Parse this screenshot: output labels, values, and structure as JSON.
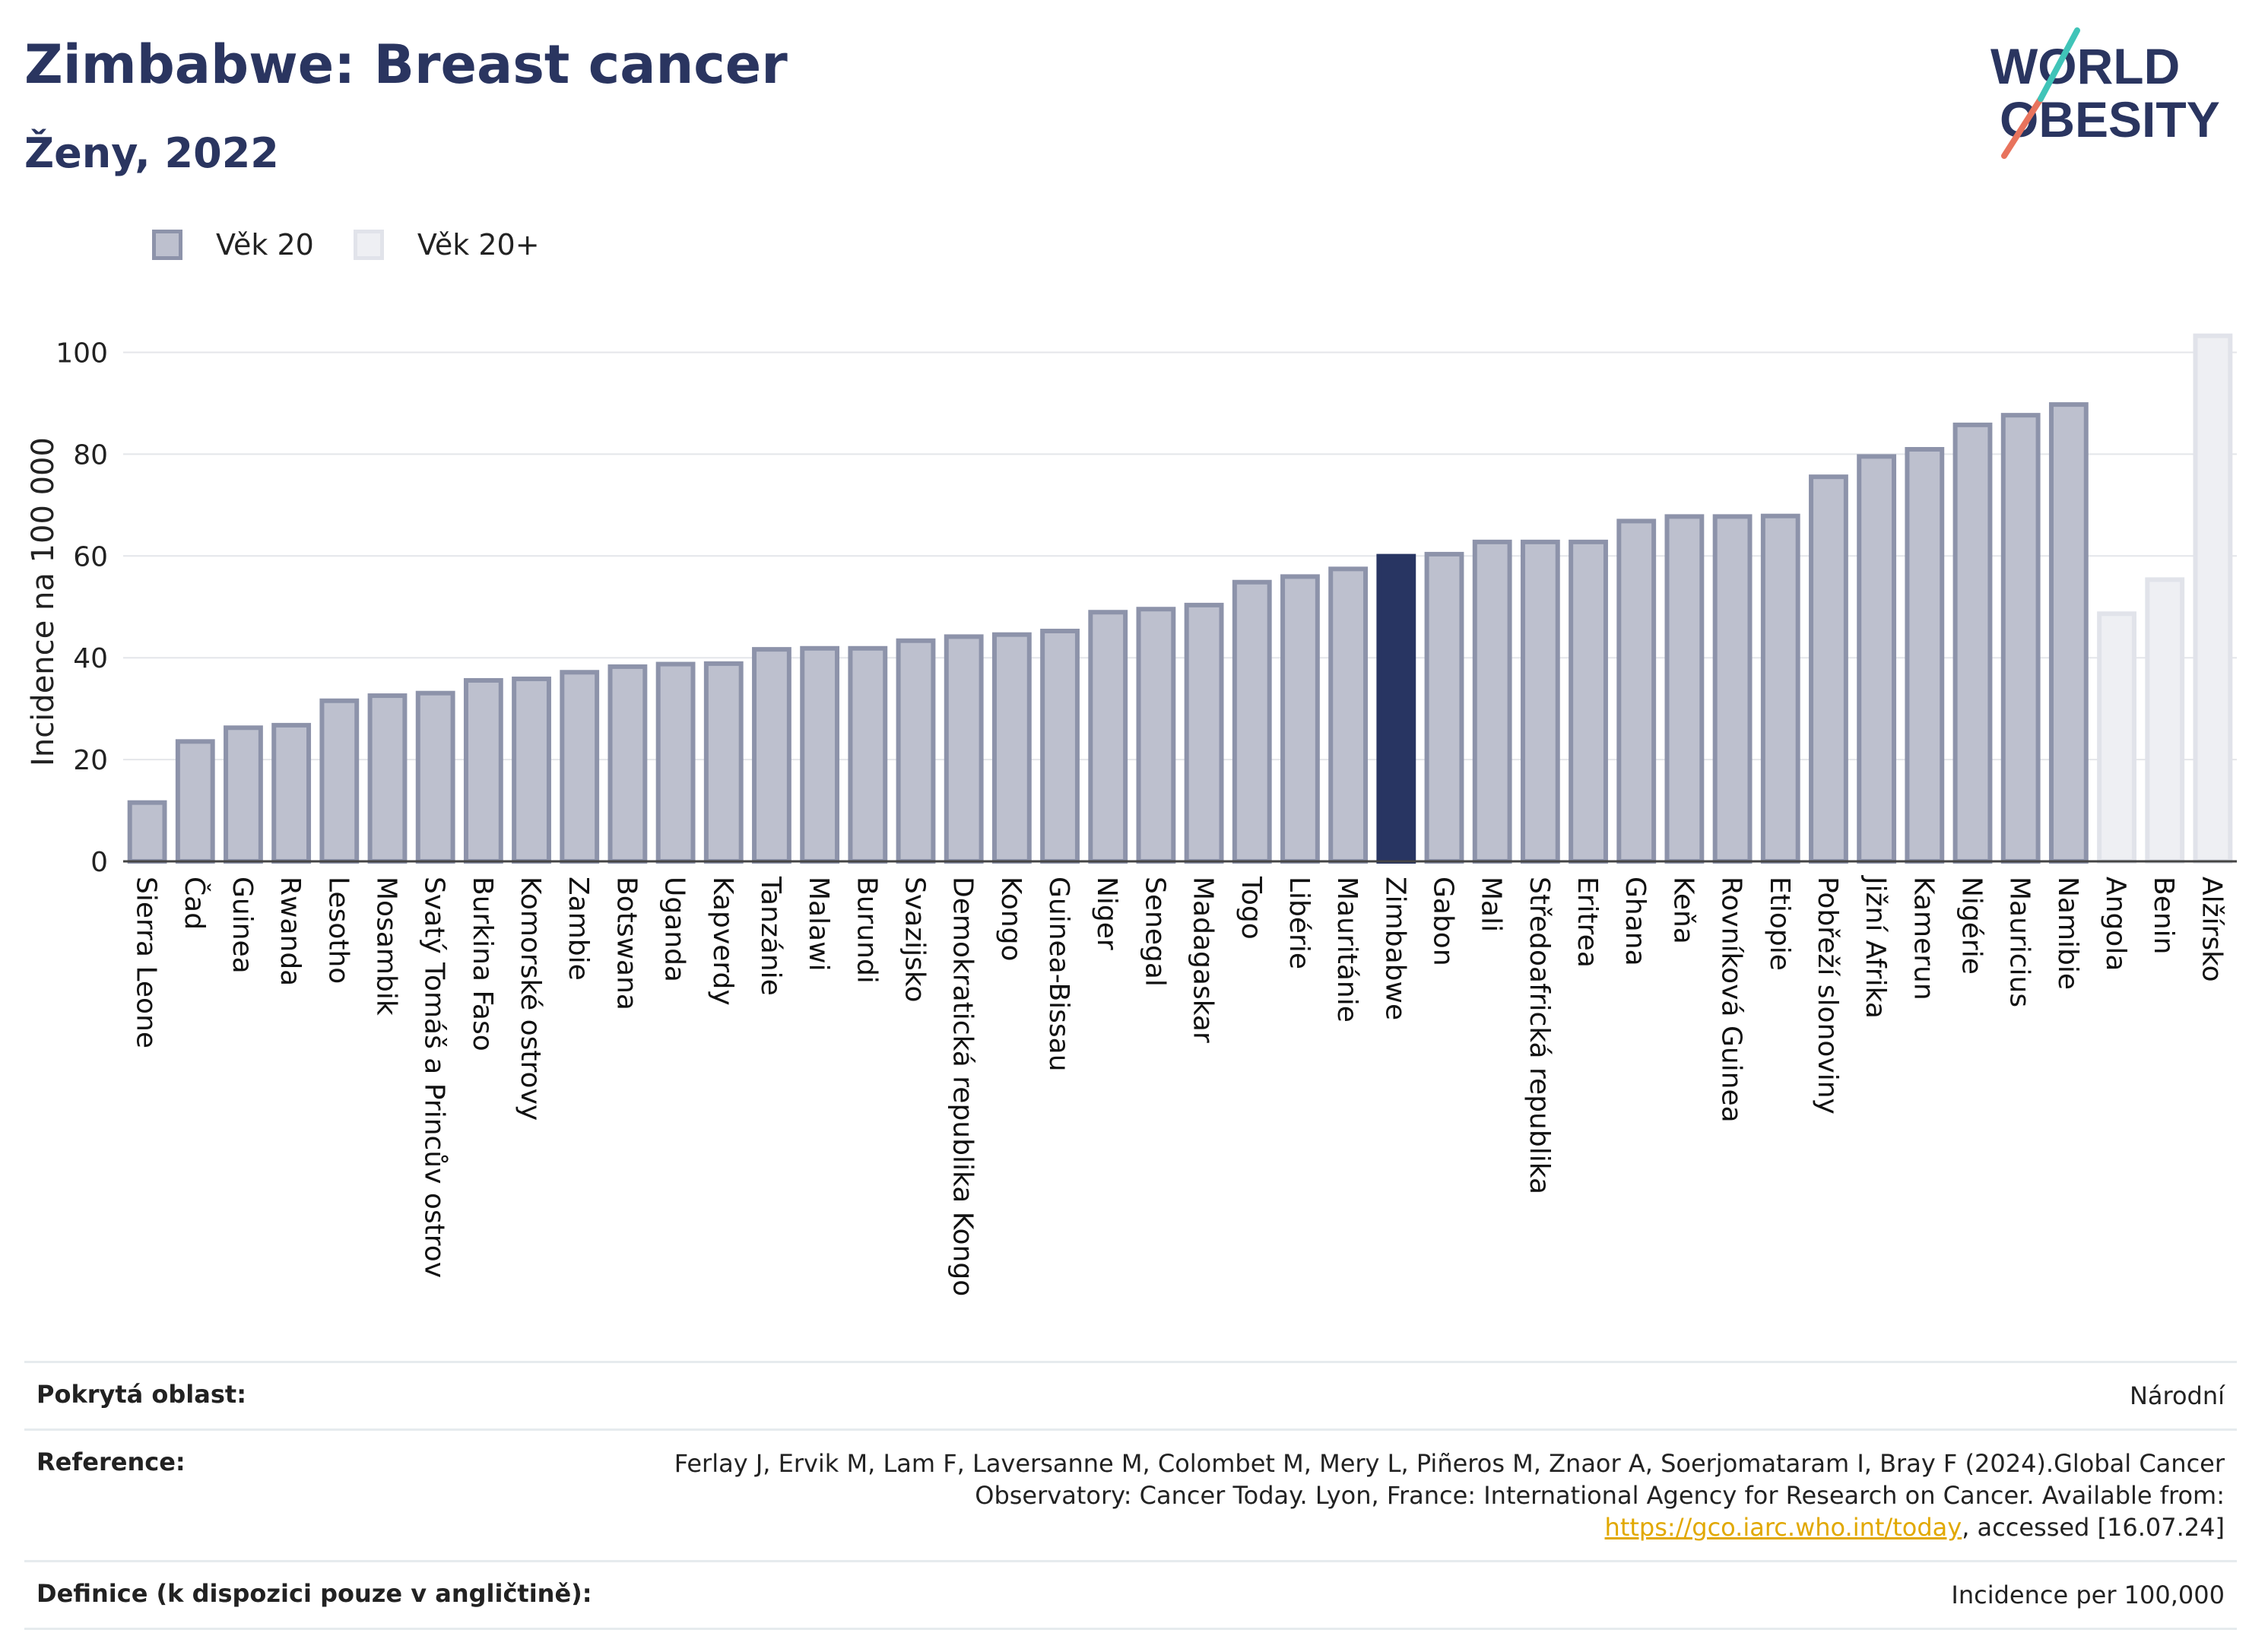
{
  "header": {
    "title": "Zimbabwe: Breast cancer",
    "subtitle": "Ženy, 2022"
  },
  "logo": {
    "line1": "WORLD",
    "line2": "OBESITY"
  },
  "legend": [
    {
      "label": "Věk 20",
      "color": "#bdc0ce"
    },
    {
      "label": "Věk 20+",
      "color": "#eeeff3"
    }
  ],
  "colors": {
    "base": "#bdc0ce",
    "base_border": "#8d93aa",
    "highlight": "#283562",
    "light": "#eeeff3",
    "light_border": "#e1e3ea",
    "link": "#e1a800"
  },
  "chart_data": {
    "type": "bar",
    "ylabel": "Incidence na 100 000",
    "xlabel": "",
    "ylim": [
      0,
      105
    ],
    "yticks": [
      0,
      20,
      40,
      60,
      80,
      100
    ],
    "grid": true,
    "highlight": "Zimbabwe",
    "categories": [
      "Sierra Leone",
      "Čad",
      "Guinea",
      "Rwanda",
      "Lesotho",
      "Mosambik",
      "Svatý Tomáš a Princův ostrov",
      "Burkina Faso",
      "Komorské ostrovy",
      "Zambie",
      "Botswana",
      "Uganda",
      "Kapverdy",
      "Tanzánie",
      "Malawi",
      "Burundi",
      "Svazijsko",
      "Demokratická republika Kongo",
      "Kongo",
      "Guinea-Bissau",
      "Niger",
      "Senegal",
      "Madagaskar",
      "Togo",
      "Libérie",
      "Mauritánie",
      "Zimbabwe",
      "Gabon",
      "Mali",
      "Středoafrická republika",
      "Eritrea",
      "Ghana",
      "Keňa",
      "Rovníková Guinea",
      "Etiopie",
      "Pobřeží slonoviny",
      "Jižní Afrika",
      "Kamerun",
      "Nigérie",
      "Mauricius",
      "Namibie",
      "Angola",
      "Benin",
      "Alžírsko"
    ],
    "values": [
      12,
      24,
      26.7,
      27.2,
      32,
      33,
      33.5,
      36,
      36.3,
      37.6,
      38.7,
      39.2,
      39.3,
      42.1,
      42.3,
      42.3,
      43.8,
      44.6,
      45,
      45.7,
      49.4,
      50,
      50.8,
      55.3,
      56.4,
      57.9,
      60.4,
      60.8,
      63.2,
      63.2,
      63.2,
      67.3,
      68.2,
      68.2,
      68.3,
      76,
      80,
      81.4,
      86.2,
      88.1,
      90.2,
      49.1,
      55.8,
      103.7
    ],
    "series_group": [
      "Věk 20",
      "Věk 20",
      "Věk 20",
      "Věk 20",
      "Věk 20",
      "Věk 20",
      "Věk 20",
      "Věk 20",
      "Věk 20",
      "Věk 20",
      "Věk 20",
      "Věk 20",
      "Věk 20",
      "Věk 20",
      "Věk 20",
      "Věk 20",
      "Věk 20",
      "Věk 20",
      "Věk 20",
      "Věk 20",
      "Věk 20",
      "Věk 20",
      "Věk 20",
      "Věk 20",
      "Věk 20",
      "Věk 20",
      "Věk 20",
      "Věk 20",
      "Věk 20",
      "Věk 20",
      "Věk 20",
      "Věk 20",
      "Věk 20",
      "Věk 20",
      "Věk 20",
      "Věk 20",
      "Věk 20",
      "Věk 20",
      "Věk 20",
      "Věk 20",
      "Věk 20",
      "Věk 20+",
      "Věk 20+",
      "Věk 20+"
    ]
  },
  "info": {
    "coverage_label": "Pokrytá oblast:",
    "coverage_value": "Národní",
    "reference_label": "Reference:",
    "reference_text": "Ferlay J, Ervik M, Lam F, Laversanne M, Colombet M, Mery L, Piñeros M, Znaor A, Soerjomataram I, Bray F (2024).Global Cancer Observatory: Cancer Today. Lyon, France: International Agency for Research on Cancer. Available from: ",
    "reference_link": "https://gco.iarc.who.int/today",
    "reference_tail": ", accessed [16.07.24]",
    "definition_label": "Definice (k dispozici pouze v angličtině):",
    "definition_value": "Incidence per 100,000"
  }
}
